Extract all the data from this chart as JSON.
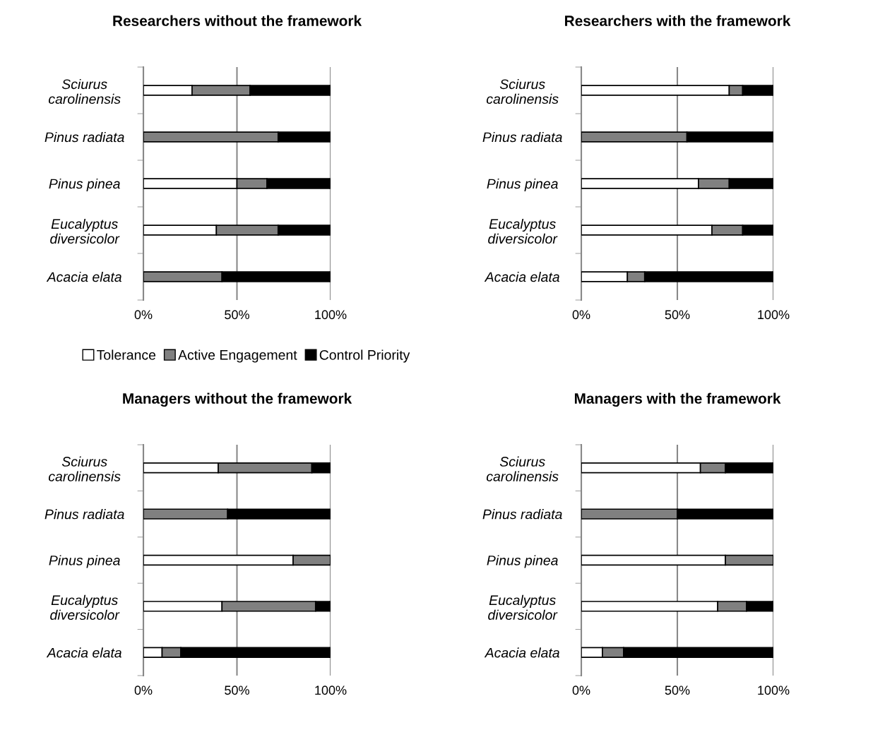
{
  "chart_data": [
    {
      "type": "bar",
      "orientation": "horizontal",
      "stacked": true,
      "title": "Researchers without the framework",
      "categories": [
        "Sciurus\ncarolinensis",
        "Pinus radiata",
        "Pinus pinea",
        "Eucalyptus\ndiversicolor",
        "Acacia elata"
      ],
      "xlim": [
        0,
        100
      ],
      "xticks": [
        {
          "value": 0,
          "label": "0%"
        },
        {
          "value": 50,
          "label": "50%"
        },
        {
          "value": 100,
          "label": "100%"
        }
      ],
      "grid": "x",
      "legend": "bottom",
      "series": [
        {
          "name": "Tolerance",
          "color": "#ffffff",
          "values": [
            26,
            0,
            50,
            39,
            0
          ]
        },
        {
          "name": "Active Engagement",
          "color": "#808080",
          "values": [
            31,
            72,
            16,
            33,
            42
          ]
        },
        {
          "name": "Control Priority",
          "color": "#000000",
          "values": [
            43,
            28,
            34,
            28,
            58
          ]
        }
      ]
    },
    {
      "type": "bar",
      "orientation": "horizontal",
      "stacked": true,
      "title": "Researchers with the framework",
      "categories": [
        "Sciurus\ncarolinensis",
        "Pinus radiata",
        "Pinus pinea",
        "Eucalyptus\ndiversicolor",
        "Acacia elata"
      ],
      "xlim": [
        0,
        100
      ],
      "xticks": [
        {
          "value": 0,
          "label": "0%"
        },
        {
          "value": 50,
          "label": "50%"
        },
        {
          "value": 100,
          "label": "100%"
        }
      ],
      "grid": "x",
      "series": [
        {
          "color": "#ffffff",
          "values": [
            77,
            0,
            61,
            68,
            24
          ]
        },
        {
          "color": "#808080",
          "values": [
            7,
            55,
            16,
            16,
            9
          ]
        },
        {
          "color": "#000000",
          "values": [
            16,
            45,
            23,
            16,
            67
          ]
        }
      ]
    },
    {
      "type": "bar",
      "orientation": "horizontal",
      "stacked": true,
      "title": "Managers without the framework",
      "categories": [
        "Sciurus\ncarolinensis",
        "Pinus radiata",
        "Pinus pinea",
        "Eucalyptus\ndiversicolor",
        "Acacia elata"
      ],
      "xlim": [
        0,
        100
      ],
      "xticks": [
        {
          "value": 0,
          "label": "0%"
        },
        {
          "value": 50,
          "label": "50%"
        },
        {
          "value": 100,
          "label": "100%"
        }
      ],
      "grid": "x",
      "series": [
        {
          "color": "#ffffff",
          "values": [
            40,
            0,
            80,
            42,
            10
          ]
        },
        {
          "color": "#808080",
          "values": [
            50,
            45,
            20,
            50,
            10
          ]
        },
        {
          "color": "#000000",
          "values": [
            10,
            55,
            0,
            8,
            80
          ]
        }
      ]
    },
    {
      "type": "bar",
      "orientation": "horizontal",
      "stacked": true,
      "title": "Managers with the framework",
      "categories": [
        "Sciurus\ncarolinensis",
        "Pinus radiata",
        "Pinus pinea",
        "Eucalyptus\ndiversicolor",
        "Acacia elata"
      ],
      "xlim": [
        0,
        100
      ],
      "xticks": [
        {
          "value": 0,
          "label": "0%"
        },
        {
          "value": 50,
          "label": "50%"
        },
        {
          "value": 100,
          "label": "100%"
        }
      ],
      "grid": "x",
      "series": [
        {
          "color": "#ffffff",
          "values": [
            62,
            0,
            75,
            71,
            11
          ]
        },
        {
          "color": "#808080",
          "values": [
            13,
            50,
            25,
            15,
            11
          ]
        },
        {
          "color": "#000000",
          "values": [
            25,
            50,
            0,
            14,
            78
          ]
        }
      ]
    }
  ]
}
